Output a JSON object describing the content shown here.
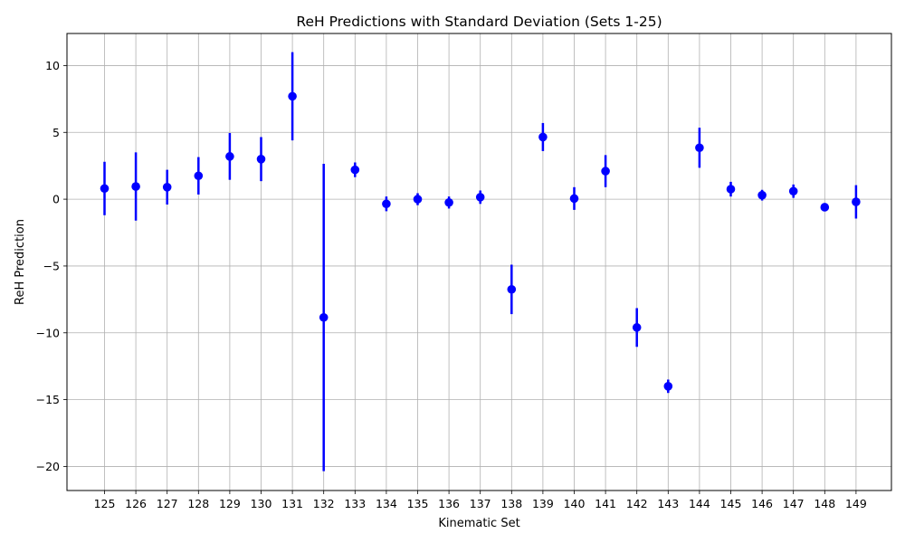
{
  "chart_data": {
    "type": "scatter",
    "title": "ReH Predictions with Standard Deviation (Sets 1-25)",
    "xlabel": "Kinematic Set",
    "ylabel": "ReH Prediction",
    "categories": [
      "125",
      "126",
      "127",
      "128",
      "129",
      "130",
      "131",
      "132",
      "133",
      "134",
      "135",
      "136",
      "137",
      "138",
      "139",
      "140",
      "141",
      "142",
      "143",
      "144",
      "145",
      "146",
      "147",
      "148",
      "149"
    ],
    "series": [
      {
        "values": [
          0.8,
          0.95,
          0.9,
          1.75,
          3.2,
          3.0,
          7.7,
          -8.85,
          2.2,
          -0.35,
          0.0,
          -0.25,
          0.15,
          -6.75,
          4.65,
          0.05,
          2.1,
          -9.6,
          -14.0,
          3.85,
          0.75,
          0.3,
          0.6,
          -0.6,
          -0.2
        ],
        "errors": [
          2.0,
          2.55,
          1.3,
          1.4,
          1.75,
          1.65,
          3.3,
          11.5,
          0.55,
          0.55,
          0.45,
          0.45,
          0.5,
          1.85,
          1.05,
          0.85,
          1.2,
          1.45,
          0.5,
          1.5,
          0.55,
          0.4,
          0.5,
          0.3,
          1.25
        ],
        "color": "#0000ff"
      }
    ],
    "ylim": [
      -21.8,
      12.4
    ],
    "yticks": [
      -20,
      -15,
      -10,
      -5,
      0,
      5,
      10
    ],
    "ytick_labels": [
      "−20",
      "−15",
      "−10",
      "−5",
      "0",
      "5",
      "10"
    ],
    "grid": true
  }
}
